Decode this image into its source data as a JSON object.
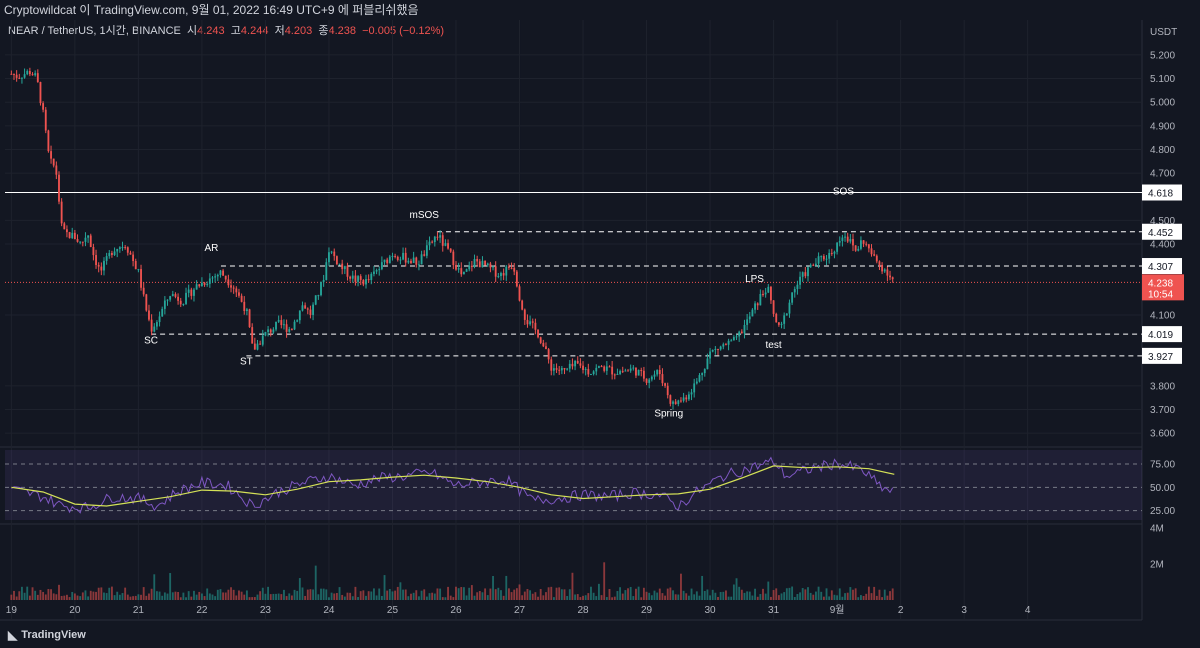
{
  "header": {
    "published_line": "Cryptowildcat 이 TradingView.com, 9월 01, 2022 16:49 UTC+9 에 퍼블리쉬했음"
  },
  "symbol": {
    "name": "NEAR / TetherUS, 1시간, BINANCE",
    "open_label": "시",
    "open": "4.243",
    "high_label": "고",
    "high": "4.244",
    "low_label": "저",
    "low": "4.203",
    "close_label": "종",
    "close": "4.238",
    "change": "−0.005 (−0.12%)"
  },
  "chart_data": {
    "type": "candlestick",
    "currency_label": "USDT",
    "ylim": [
      3.55,
      5.28
    ],
    "y_ticks": [
      "5.200",
      "5.100",
      "5.000",
      "4.900",
      "4.800",
      "4.700",
      "4.500",
      "4.400",
      "4.100",
      "3.800",
      "3.700",
      "3.600"
    ],
    "x_ticks": [
      "19",
      "20",
      "21",
      "22",
      "23",
      "24",
      "25",
      "26",
      "27",
      "28",
      "29",
      "30",
      "31",
      "9월",
      "2",
      "3",
      "4"
    ],
    "x_tick_values": [
      19,
      20,
      21,
      22,
      23,
      24,
      25,
      26,
      27,
      28,
      29,
      30,
      31,
      32,
      33,
      34,
      35
    ],
    "xlim": [
      18.9,
      36.8
    ],
    "close_path": [
      [
        19.0,
        5.12
      ],
      [
        19.1,
        5.11
      ],
      [
        19.3,
        5.13
      ],
      [
        19.4,
        5.1
      ],
      [
        19.5,
        4.95
      ],
      [
        19.6,
        4.75
      ],
      [
        19.7,
        4.72
      ],
      [
        19.8,
        4.45
      ],
      [
        20.0,
        4.43
      ],
      [
        20.1,
        4.4
      ],
      [
        20.2,
        4.45
      ],
      [
        20.3,
        4.35
      ],
      [
        20.4,
        4.28
      ],
      [
        20.6,
        4.38
      ],
      [
        20.8,
        4.4
      ],
      [
        21.0,
        4.28
      ],
      [
        21.1,
        4.15
      ],
      [
        21.2,
        4.04
      ],
      [
        21.3,
        4.08
      ],
      [
        21.5,
        4.19
      ],
      [
        21.7,
        4.16
      ],
      [
        21.9,
        4.22
      ],
      [
        22.1,
        4.25
      ],
      [
        22.3,
        4.28
      ],
      [
        22.5,
        4.22
      ],
      [
        22.7,
        4.12
      ],
      [
        22.8,
        3.95
      ],
      [
        23.0,
        4.02
      ],
      [
        23.2,
        4.06
      ],
      [
        23.4,
        4.04
      ],
      [
        23.6,
        4.15
      ],
      [
        23.7,
        4.1
      ],
      [
        23.9,
        4.24
      ],
      [
        24.0,
        4.38
      ],
      [
        24.2,
        4.3
      ],
      [
        24.4,
        4.25
      ],
      [
        24.6,
        4.24
      ],
      [
        24.8,
        4.3
      ],
      [
        25.0,
        4.36
      ],
      [
        25.2,
        4.34
      ],
      [
        25.4,
        4.32
      ],
      [
        25.6,
        4.4
      ],
      [
        25.7,
        4.44
      ],
      [
        25.9,
        4.36
      ],
      [
        26.1,
        4.26
      ],
      [
        26.3,
        4.33
      ],
      [
        26.5,
        4.3
      ],
      [
        26.7,
        4.27
      ],
      [
        26.9,
        4.32
      ],
      [
        27.0,
        4.18
      ],
      [
        27.1,
        4.08
      ],
      [
        27.3,
        4.02
      ],
      [
        27.5,
        3.88
      ],
      [
        27.7,
        3.86
      ],
      [
        27.9,
        3.89
      ],
      [
        28.1,
        3.86
      ],
      [
        28.3,
        3.88
      ],
      [
        28.5,
        3.86
      ],
      [
        28.8,
        3.87
      ],
      [
        29.0,
        3.83
      ],
      [
        29.2,
        3.86
      ],
      [
        29.4,
        3.72
      ],
      [
        29.6,
        3.75
      ],
      [
        29.8,
        3.82
      ],
      [
        30.0,
        3.94
      ],
      [
        30.2,
        3.97
      ],
      [
        30.4,
        3.99
      ],
      [
        30.6,
        4.08
      ],
      [
        30.8,
        4.18
      ],
      [
        30.9,
        4.22
      ],
      [
        31.0,
        4.1
      ],
      [
        31.1,
        4.03
      ],
      [
        31.3,
        4.2
      ],
      [
        31.5,
        4.28
      ],
      [
        31.7,
        4.33
      ],
      [
        31.9,
        4.36
      ],
      [
        32.0,
        4.4
      ],
      [
        32.1,
        4.45
      ],
      [
        32.3,
        4.37
      ],
      [
        32.4,
        4.42
      ],
      [
        32.6,
        4.33
      ],
      [
        32.8,
        4.28
      ],
      [
        32.9,
        4.24
      ]
    ],
    "candles_per_day": 24,
    "levels": [
      {
        "label": "4.618",
        "value": 4.618,
        "style": "solid",
        "color": "#ffffff",
        "from": 18.9
      },
      {
        "label": "4.452",
        "value": 4.452,
        "style": "dashed",
        "color": "#ffffff",
        "from": 25.7
      },
      {
        "label": "4.307",
        "value": 4.307,
        "style": "dashed",
        "color": "#ffffff",
        "from": 22.3
      },
      {
        "label": "4.019",
        "value": 4.019,
        "style": "dashed",
        "color": "#ffffff",
        "from": 21.2
      },
      {
        "label": "3.927",
        "value": 3.927,
        "style": "dashed",
        "color": "#ffffff",
        "from": 22.7
      }
    ],
    "current_price": {
      "label": "4.238",
      "value": 4.238,
      "countdown": "10:54",
      "color": "#ef5350"
    },
    "annotations": [
      {
        "text": "SC",
        "x": 21.2,
        "y": 3.98
      },
      {
        "text": "AR",
        "x": 22.15,
        "y": 4.37
      },
      {
        "text": "ST",
        "x": 22.7,
        "y": 3.89
      },
      {
        "text": "mSOS",
        "x": 25.5,
        "y": 4.51
      },
      {
        "text": "LPS",
        "x": 30.7,
        "y": 4.24
      },
      {
        "text": "test",
        "x": 31.0,
        "y": 3.96
      },
      {
        "text": "Spring",
        "x": 29.35,
        "y": 3.67
      },
      {
        "text": "SOS",
        "x": 32.1,
        "y": 4.61
      }
    ],
    "rsi": {
      "ylim": [
        15,
        90
      ],
      "ticks": [
        "75.00",
        "50.00",
        "25.00"
      ],
      "tick_values": [
        75,
        50,
        25
      ],
      "band": [
        30,
        70
      ],
      "rsi_line": [
        [
          19.0,
          48
        ],
        [
          19.5,
          40
        ],
        [
          19.8,
          30
        ],
        [
          20.2,
          28
        ],
        [
          20.6,
          40
        ],
        [
          21.0,
          38
        ],
        [
          21.3,
          30
        ],
        [
          21.6,
          45
        ],
        [
          22.0,
          55
        ],
        [
          22.4,
          52
        ],
        [
          22.8,
          30
        ],
        [
          23.2,
          45
        ],
        [
          23.6,
          55
        ],
        [
          24.0,
          62
        ],
        [
          24.4,
          52
        ],
        [
          24.8,
          60
        ],
        [
          25.2,
          62
        ],
        [
          25.6,
          66
        ],
        [
          26.0,
          52
        ],
        [
          26.4,
          56
        ],
        [
          26.8,
          58
        ],
        [
          27.2,
          36
        ],
        [
          27.6,
          38
        ],
        [
          28.0,
          42
        ],
        [
          28.4,
          40
        ],
        [
          28.8,
          44
        ],
        [
          29.2,
          42
        ],
        [
          29.5,
          30
        ],
        [
          29.8,
          45
        ],
        [
          30.2,
          62
        ],
        [
          30.6,
          70
        ],
        [
          31.0,
          78
        ],
        [
          31.2,
          62
        ],
        [
          31.6,
          70
        ],
        [
          32.0,
          76
        ],
        [
          32.4,
          68
        ],
        [
          32.7,
          50
        ],
        [
          32.9,
          44
        ]
      ],
      "ma_line": [
        [
          19.0,
          50
        ],
        [
          19.5,
          45
        ],
        [
          20.0,
          32
        ],
        [
          20.5,
          30
        ],
        [
          21.0,
          35
        ],
        [
          21.5,
          40
        ],
        [
          22.0,
          47
        ],
        [
          22.5,
          46
        ],
        [
          23.0,
          42
        ],
        [
          23.5,
          48
        ],
        [
          24.0,
          56
        ],
        [
          24.5,
          58
        ],
        [
          25.0,
          61
        ],
        [
          25.5,
          63
        ],
        [
          26.0,
          60
        ],
        [
          26.5,
          56
        ],
        [
          27.0,
          50
        ],
        [
          27.5,
          42
        ],
        [
          28.0,
          38
        ],
        [
          28.5,
          40
        ],
        [
          29.0,
          42
        ],
        [
          29.5,
          43
        ],
        [
          30.0,
          48
        ],
        [
          30.5,
          60
        ],
        [
          31.0,
          73
        ],
        [
          31.5,
          71
        ],
        [
          32.0,
          72
        ],
        [
          32.5,
          70
        ],
        [
          32.9,
          64
        ]
      ]
    },
    "volume": {
      "ticks": [
        "4M",
        "2M"
      ],
      "tick_values": [
        4,
        2
      ],
      "ylim": [
        0,
        4
      ]
    }
  },
  "footer": {
    "brand": "TradingView"
  }
}
